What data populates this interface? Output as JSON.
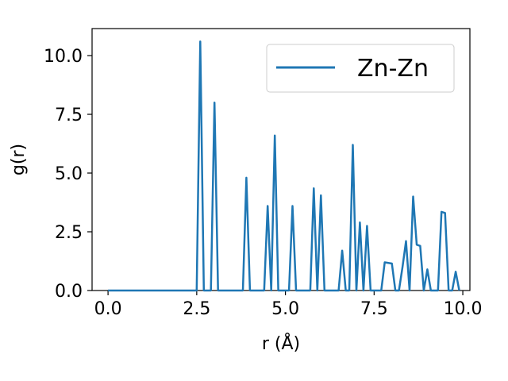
{
  "chart_data": {
    "type": "line",
    "xlabel": "r (Å)",
    "ylabel": "g(r)",
    "xlim": [
      -0.45,
      10.2
    ],
    "ylim": [
      0,
      11.15
    ],
    "x_ticks": [
      0.0,
      2.5,
      5.0,
      7.5,
      10.0
    ],
    "y_ticks": [
      0.0,
      2.5,
      5.0,
      7.5,
      10.0
    ],
    "x_tick_labels": [
      "0.0",
      "2.5",
      "5.0",
      "7.5",
      "10.0"
    ],
    "y_tick_labels": [
      "0.0",
      "2.5",
      "5.0",
      "7.5",
      "10.0"
    ],
    "grid": false,
    "legend": {
      "position": "top-right"
    },
    "series": [
      {
        "name": "Zn-Zn",
        "color": "#1f77b4",
        "x": [
          0.0,
          2.5,
          2.6,
          2.7,
          2.9,
          3.0,
          3.1,
          3.8,
          3.9,
          4.0,
          4.4,
          4.5,
          4.6,
          4.7,
          4.8,
          5.1,
          5.2,
          5.3,
          5.7,
          5.8,
          5.9,
          6.0,
          6.1,
          6.5,
          6.6,
          6.7,
          6.8,
          6.9,
          7.0,
          7.1,
          7.2,
          7.3,
          7.4,
          7.7,
          7.8,
          8.0,
          8.1,
          8.2,
          8.3,
          8.4,
          8.5,
          8.6,
          8.7,
          8.8,
          8.9,
          9.0,
          9.1,
          9.3,
          9.4,
          9.5,
          9.6,
          9.7,
          9.8,
          9.9
        ],
        "y": [
          0.0,
          0.0,
          10.6,
          0.0,
          0.0,
          8.0,
          0.0,
          0.0,
          4.8,
          0.0,
          0.0,
          3.6,
          0.0,
          6.6,
          0.0,
          0.0,
          3.6,
          0.0,
          0.0,
          4.35,
          0.0,
          4.05,
          0.0,
          0.0,
          1.7,
          0.0,
          0.0,
          6.2,
          0.0,
          2.9,
          0.0,
          2.75,
          0.0,
          0.0,
          1.2,
          1.15,
          0.0,
          0.0,
          1.0,
          2.1,
          0.0,
          4.0,
          1.95,
          1.9,
          0.0,
          0.9,
          0.0,
          0.0,
          3.35,
          3.3,
          0.0,
          0.0,
          0.8,
          0.0
        ]
      }
    ]
  }
}
